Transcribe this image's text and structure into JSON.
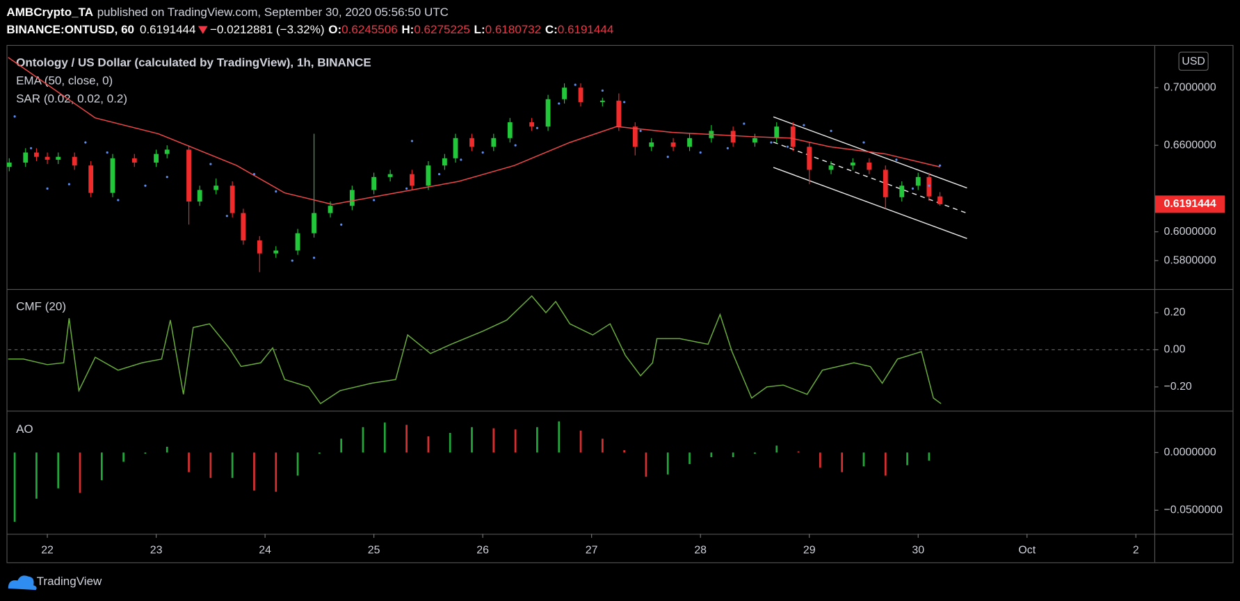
{
  "header": {
    "author": "AMBCrypto_TA",
    "published": "published on TradingView.com, September 30, 2020 05:56:50 UTC",
    "symbol": "BINANCE:ONTUSD, 60",
    "change": {
      "value": -0.0212881,
      "label": "−0.0212881"
    },
    "change_pct": {
      "value": -3.32,
      "label": "(−3.32%)"
    },
    "ohlc_labels": [
      "O:",
      "H:",
      "L:",
      "C:"
    ]
  },
  "footer": {
    "brand": "TradingView"
  },
  "chart_data": [
    {
      "type": "candlestick",
      "title": "Ontology / US Dollar (calculated by TradingView), 1h, BINANCE",
      "currency": "USD",
      "up_color": "#22c83a",
      "down_color": "#f02b2b",
      "x": [
        21.65,
        21.8,
        21.9,
        22.0,
        22.1,
        22.25,
        22.4,
        22.6,
        22.8,
        23.0,
        23.1,
        23.3,
        23.4,
        23.55,
        23.7,
        23.8,
        23.95,
        24.1,
        24.3,
        24.45,
        24.6,
        24.8,
        25.0,
        25.15,
        25.35,
        25.5,
        25.65,
        25.75,
        25.9,
        26.1,
        26.25,
        26.45,
        26.6,
        26.75,
        26.9,
        27.1,
        27.25,
        27.4,
        27.55,
        27.75,
        27.9,
        28.1,
        28.3,
        28.5,
        28.7,
        28.85,
        29.0,
        29.2,
        29.4,
        29.55,
        29.7,
        29.85,
        30.0,
        30.1,
        30.2
      ],
      "open": [
        0.645,
        0.648,
        0.655,
        0.652,
        0.65,
        0.652,
        0.646,
        0.627,
        0.651,
        0.648,
        0.654,
        0.657,
        0.621,
        0.629,
        0.632,
        0.613,
        0.594,
        0.585,
        0.587,
        0.599,
        0.613,
        0.618,
        0.629,
        0.638,
        0.64,
        0.632,
        0.646,
        0.651,
        0.665,
        0.659,
        0.665,
        0.676,
        0.673,
        0.692,
        0.7,
        0.69,
        0.691,
        0.673,
        0.659,
        0.662,
        0.659,
        0.665,
        0.67,
        0.662,
        0.665,
        0.673,
        0.659,
        0.643,
        0.646,
        0.648,
        0.643,
        0.624,
        0.632,
        0.638,
        0.6245506
      ],
      "high": [
        0.651,
        0.658,
        0.658,
        0.655,
        0.655,
        0.655,
        0.649,
        0.654,
        0.654,
        0.657,
        0.66,
        0.66,
        0.632,
        0.637,
        0.635,
        0.616,
        0.597,
        0.59,
        0.602,
        0.668,
        0.621,
        0.632,
        0.641,
        0.643,
        0.643,
        0.649,
        0.654,
        0.668,
        0.668,
        0.668,
        0.679,
        0.679,
        0.695,
        0.703,
        0.703,
        0.693,
        0.696,
        0.676,
        0.665,
        0.665,
        0.668,
        0.674,
        0.673,
        0.668,
        0.676,
        0.676,
        0.662,
        0.649,
        0.651,
        0.651,
        0.646,
        0.635,
        0.641,
        0.641,
        0.6275225
      ],
      "low": [
        0.642,
        0.645,
        0.649,
        0.647,
        0.647,
        0.643,
        0.624,
        0.624,
        0.645,
        0.645,
        0.651,
        0.605,
        0.618,
        0.626,
        0.61,
        0.591,
        0.572,
        0.582,
        0.584,
        0.596,
        0.61,
        0.615,
        0.626,
        0.635,
        0.629,
        0.629,
        0.643,
        0.648,
        0.656,
        0.656,
        0.662,
        0.67,
        0.67,
        0.689,
        0.687,
        0.687,
        0.67,
        0.653,
        0.656,
        0.656,
        0.656,
        0.662,
        0.659,
        0.659,
        0.662,
        0.656,
        0.633,
        0.64,
        0.643,
        0.64,
        0.616,
        0.621,
        0.629,
        0.6215,
        0.6180732
      ],
      "close": [
        0.648,
        0.655,
        0.652,
        0.65,
        0.652,
        0.646,
        0.627,
        0.651,
        0.648,
        0.654,
        0.657,
        0.621,
        0.629,
        0.632,
        0.613,
        0.594,
        0.585,
        0.587,
        0.599,
        0.613,
        0.618,
        0.629,
        0.638,
        0.64,
        0.632,
        0.646,
        0.651,
        0.665,
        0.659,
        0.665,
        0.676,
        0.673,
        0.692,
        0.7,
        0.69,
        0.691,
        0.673,
        0.659,
        0.662,
        0.659,
        0.665,
        0.67,
        0.662,
        0.665,
        0.673,
        0.659,
        0.643,
        0.646,
        0.648,
        0.643,
        0.624,
        0.632,
        0.638,
        0.6245506,
        0.6191444
      ],
      "series": [
        {
          "name": "EMA (50, close, 0)",
          "type": "line",
          "color": "#f04848",
          "x": [
            21.64,
            22.44,
            23.02,
            23.38,
            23.74,
            24.18,
            24.62,
            25.2,
            25.78,
            26.29,
            26.8,
            27.23,
            27.74,
            28.47,
            28.83,
            29.19,
            29.7,
            30.2
          ],
          "values": [
            0.721,
            0.679,
            0.668,
            0.657,
            0.646,
            0.627,
            0.619,
            0.627,
            0.635,
            0.646,
            0.662,
            0.673,
            0.669,
            0.666,
            0.665,
            0.659,
            0.654,
            0.645
          ]
        },
        {
          "name": "SAR (0.02, 0.02, 0.2)",
          "type": "dots",
          "color": "#5b8def",
          "x": [
            21.7,
            21.85,
            22.0,
            22.2,
            22.35,
            22.55,
            22.65,
            22.9,
            23.1,
            23.5,
            23.65,
            23.9,
            24.1,
            24.25,
            24.45,
            24.7,
            25.0,
            25.3,
            25.35,
            25.6,
            25.8,
            26.0,
            26.3,
            26.5,
            26.7,
            26.85,
            27.1,
            27.3,
            27.45,
            27.7,
            28.0,
            28.25,
            28.4,
            28.65,
            28.8,
            28.95,
            29.2,
            29.5,
            29.8,
            29.95,
            30.1,
            30.2
          ],
          "values": [
            0.68,
            0.658,
            0.63,
            0.633,
            0.662,
            0.655,
            0.622,
            0.632,
            0.638,
            0.647,
            0.611,
            0.64,
            0.628,
            0.58,
            0.582,
            0.605,
            0.622,
            0.63,
            0.663,
            0.64,
            0.65,
            0.655,
            0.66,
            0.672,
            0.689,
            0.702,
            0.698,
            0.69,
            0.67,
            0.652,
            0.655,
            0.658,
            0.675,
            0.662,
            0.659,
            0.674,
            0.67,
            0.662,
            0.65,
            0.63,
            0.632,
            0.646
          ]
        }
      ],
      "xlim": [
        21.64,
        32.17
      ],
      "ylim": [
        0.56027,
        0.72904
      ],
      "yticks": [
        {
          "value": 0.58,
          "label": "0.5800000"
        },
        {
          "value": 0.6,
          "label": "0.6000000"
        },
        {
          "value": 0.66,
          "label": "0.6600000"
        },
        {
          "value": 0.7,
          "label": "0.7000000"
        }
      ]
    },
    {
      "type": "line",
      "series": [
        {
          "name": "CMF (20)",
          "color": "#6aaf3c",
          "x": [
            21.64,
            21.78,
            22.0,
            22.15,
            22.2,
            22.29,
            22.44,
            22.65,
            22.87,
            23.05,
            23.13,
            23.25,
            23.34,
            23.49,
            23.67,
            23.78,
            23.96,
            24.07,
            24.18,
            24.4,
            24.51,
            24.69,
            24.98,
            25.2,
            25.31,
            25.52,
            25.71,
            26.0,
            26.22,
            26.45,
            26.58,
            26.67,
            26.8,
            27.01,
            27.17,
            27.31,
            27.45,
            27.56,
            27.6,
            27.81,
            28.07,
            28.18,
            28.29,
            28.47,
            28.61,
            28.76,
            28.98,
            29.12,
            29.41,
            29.56,
            29.67,
            29.81,
            30.03,
            30.14,
            30.21
          ],
          "values": [
            -0.05,
            -0.05,
            -0.08,
            -0.07,
            0.17,
            -0.22,
            -0.04,
            -0.11,
            -0.07,
            -0.05,
            0.16,
            -0.24,
            0.12,
            0.14,
            0.01,
            -0.09,
            -0.07,
            0.01,
            -0.16,
            -0.2,
            -0.29,
            -0.22,
            -0.18,
            -0.16,
            0.08,
            -0.02,
            0.03,
            0.1,
            0.16,
            0.29,
            0.2,
            0.26,
            0.14,
            0.08,
            0.14,
            -0.03,
            -0.14,
            -0.07,
            0.06,
            0.06,
            0.03,
            0.19,
            -0.01,
            -0.26,
            -0.2,
            -0.19,
            -0.24,
            -0.11,
            -0.07,
            -0.09,
            -0.18,
            -0.05,
            -0.01,
            -0.26,
            -0.29
          ]
        }
      ],
      "reference_line": 0,
      "xlim": [
        21.64,
        32.17
      ],
      "ylim": [
        -0.328,
        0.323
      ],
      "yticks": [
        {
          "value": -0.2,
          "label": "−0.20"
        },
        {
          "value": 0,
          "label": "0.00"
        },
        {
          "value": 0.2,
          "label": "0.20"
        }
      ]
    },
    {
      "type": "bar",
      "series": [
        {
          "name": "AO",
          "up_color": "#22a83a",
          "down_color": "#d63030",
          "x": [
            21.7,
            21.9,
            22.1,
            22.3,
            22.5,
            22.7,
            22.9,
            23.1,
            23.3,
            23.5,
            23.7,
            23.9,
            24.1,
            24.3,
            24.5,
            24.7,
            24.9,
            25.1,
            25.3,
            25.5,
            25.7,
            25.9,
            26.1,
            26.3,
            26.5,
            26.7,
            26.9,
            27.1,
            27.3,
            27.5,
            27.7,
            27.9,
            28.1,
            28.3,
            28.5,
            28.7,
            28.9,
            29.1,
            29.3,
            29.5,
            29.7,
            29.9,
            30.1
          ],
          "values": [
            -0.06,
            -0.04,
            -0.031,
            -0.035,
            -0.024,
            -0.008,
            -0.001,
            0.005,
            -0.017,
            -0.022,
            -0.022,
            -0.033,
            -0.034,
            -0.02,
            -0.001,
            0.012,
            0.022,
            0.026,
            0.024,
            0.014,
            0.017,
            0.022,
            0.021,
            0.02,
            0.022,
            0.027,
            0.019,
            0.012,
            0.002,
            -0.021,
            -0.019,
            -0.01,
            -0.004,
            -0.004,
            -0.001,
            0.006,
            0.001,
            -0.013,
            -0.017,
            -0.012,
            -0.02,
            -0.011,
            -0.007
          ]
        }
      ],
      "xlim": [
        21.64,
        32.17
      ],
      "ylim": [
        -0.0705,
        0.0356
      ],
      "yticks": [
        {
          "value": -0.05,
          "label": "−0.0500000"
        },
        {
          "value": 0,
          "label": "0.0000000"
        }
      ],
      "xticks": [
        22,
        23,
        24,
        25,
        26,
        27,
        28,
        29,
        30,
        {
          "value": 31,
          "label": "Oct"
        },
        {
          "value": 32,
          "label": "2"
        }
      ]
    }
  ]
}
